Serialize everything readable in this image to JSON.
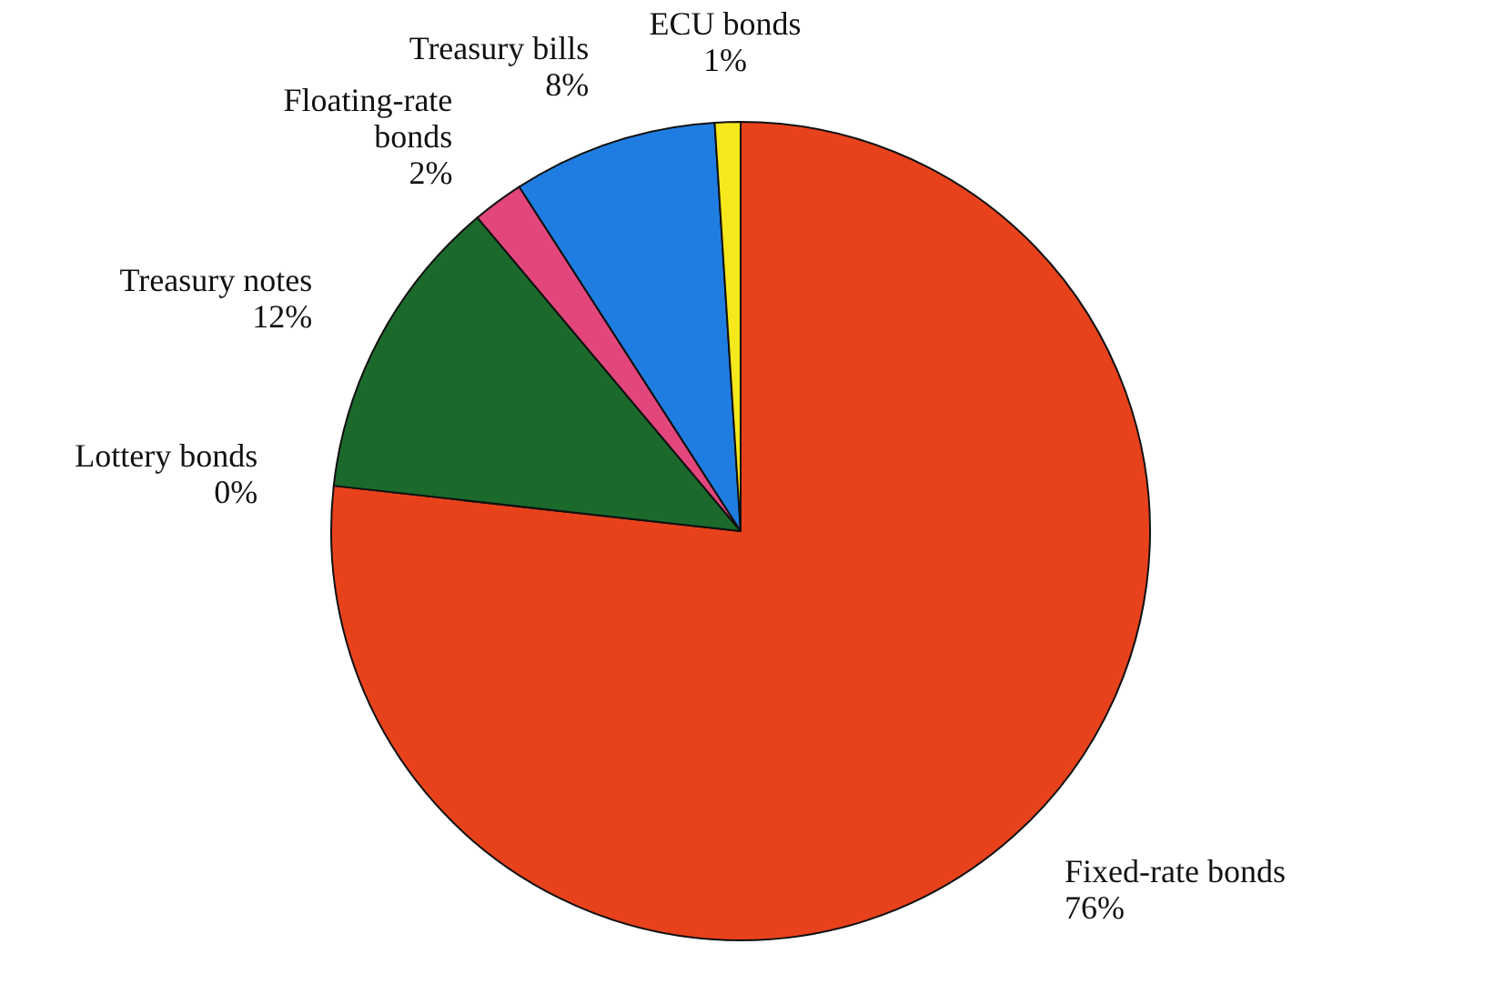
{
  "chart_data": {
    "type": "pie",
    "categories": [
      "Fixed-rate bonds",
      "Lottery bonds",
      "Treasury notes",
      "Floating-rate bonds",
      "Treasury bills",
      "ECU bonds"
    ],
    "values": [
      76,
      0,
      12,
      2,
      8,
      1
    ],
    "value_labels": [
      "76%",
      "0%",
      "12%",
      "2%",
      "8%",
      "1%"
    ],
    "colors": [
      "#e8421c",
      null,
      "#1b6a2c",
      "#e2467c",
      "#1f7de2",
      "#f6e81c"
    ]
  }
}
